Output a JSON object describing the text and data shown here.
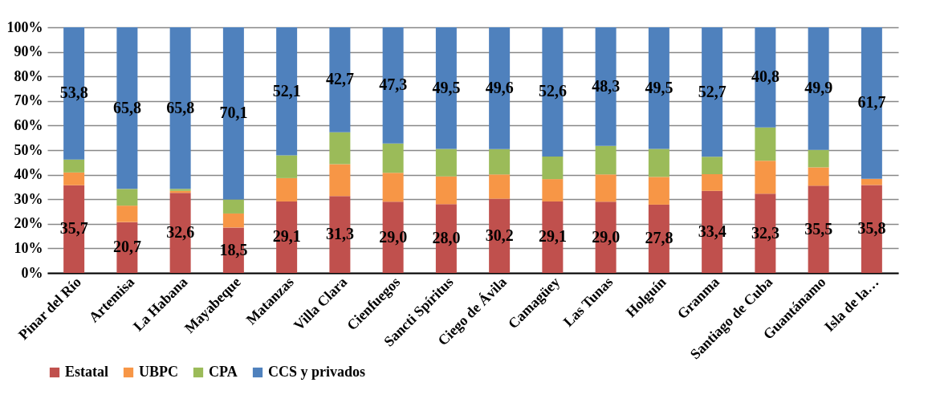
{
  "chart_data": {
    "type": "bar",
    "stacked": true,
    "categories": [
      "Pinar del Río",
      "Artemisa",
      "La Habana",
      "Mayabeque",
      "Matanzas",
      "Villa Clara",
      "Cienfuegos",
      "Sancti Spíritus",
      "Ciego de Ávila",
      "Camagüey",
      "Las Tunas",
      "Holguín",
      "Granma",
      "Santiago de Cuba",
      "Guantánamo",
      "Isla de la…"
    ],
    "series": [
      {
        "name": "Estatal",
        "color": "#c0504d",
        "values": [
          35.7,
          20.7,
          32.6,
          18.5,
          29.1,
          31.3,
          29.0,
          28.0,
          30.2,
          29.1,
          29.0,
          27.8,
          33.4,
          32.3,
          35.5,
          35.8
        ],
        "value_labels": [
          "35,7",
          "20,7",
          "32,6",
          "18,5",
          "29,1",
          "31,3",
          "29,0",
          "28,0",
          "30,2",
          "29,1",
          "29,0",
          "27,8",
          "33,4",
          "32,3",
          "35,5",
          "35,8"
        ]
      },
      {
        "name": "UBPC",
        "color": "#f79646",
        "values": [
          5.2,
          6.7,
          0.8,
          5.7,
          9.5,
          13.0,
          11.8,
          11.3,
          9.9,
          9.1,
          11.1,
          11.3,
          6.8,
          13.4,
          7.5,
          2.5
        ]
      },
      {
        "name": "CPA",
        "color": "#9bbb59",
        "values": [
          5.3,
          6.8,
          0.8,
          5.7,
          9.3,
          13.0,
          11.9,
          11.2,
          10.3,
          9.2,
          11.6,
          11.4,
          7.1,
          13.5,
          7.1,
          0
        ]
      },
      {
        "name": "CCS y privados",
        "color": "#4f81bd",
        "values": [
          53.8,
          65.8,
          65.8,
          70.1,
          52.1,
          42.7,
          47.3,
          49.5,
          49.6,
          52.6,
          48.3,
          49.5,
          52.7,
          40.8,
          49.9,
          61.7
        ],
        "value_labels": [
          "53,8",
          "65,8",
          "65,8",
          "70,1",
          "52,1",
          "42,7",
          "47,3",
          "49,5",
          "49,6",
          "52,6",
          "48,3",
          "49,5",
          "52,7",
          "40,8",
          "49,9",
          "61,7"
        ]
      }
    ],
    "ylim": [
      0,
      100
    ],
    "yticks": [
      {
        "value": 0,
        "label": "0%"
      },
      {
        "value": 10,
        "label": "10%"
      },
      {
        "value": 20,
        "label": "20%"
      },
      {
        "value": 30,
        "label": "30%"
      },
      {
        "value": 40,
        "label": "40%"
      },
      {
        "value": 50,
        "label": "50%"
      },
      {
        "value": 60,
        "label": "60%"
      },
      {
        "value": 70,
        "label": "70%"
      },
      {
        "value": 80,
        "label": "80%"
      },
      {
        "value": 90,
        "label": "90%"
      },
      {
        "value": 100,
        "label": "100%"
      }
    ],
    "grid": "y",
    "legend": "bottom"
  }
}
